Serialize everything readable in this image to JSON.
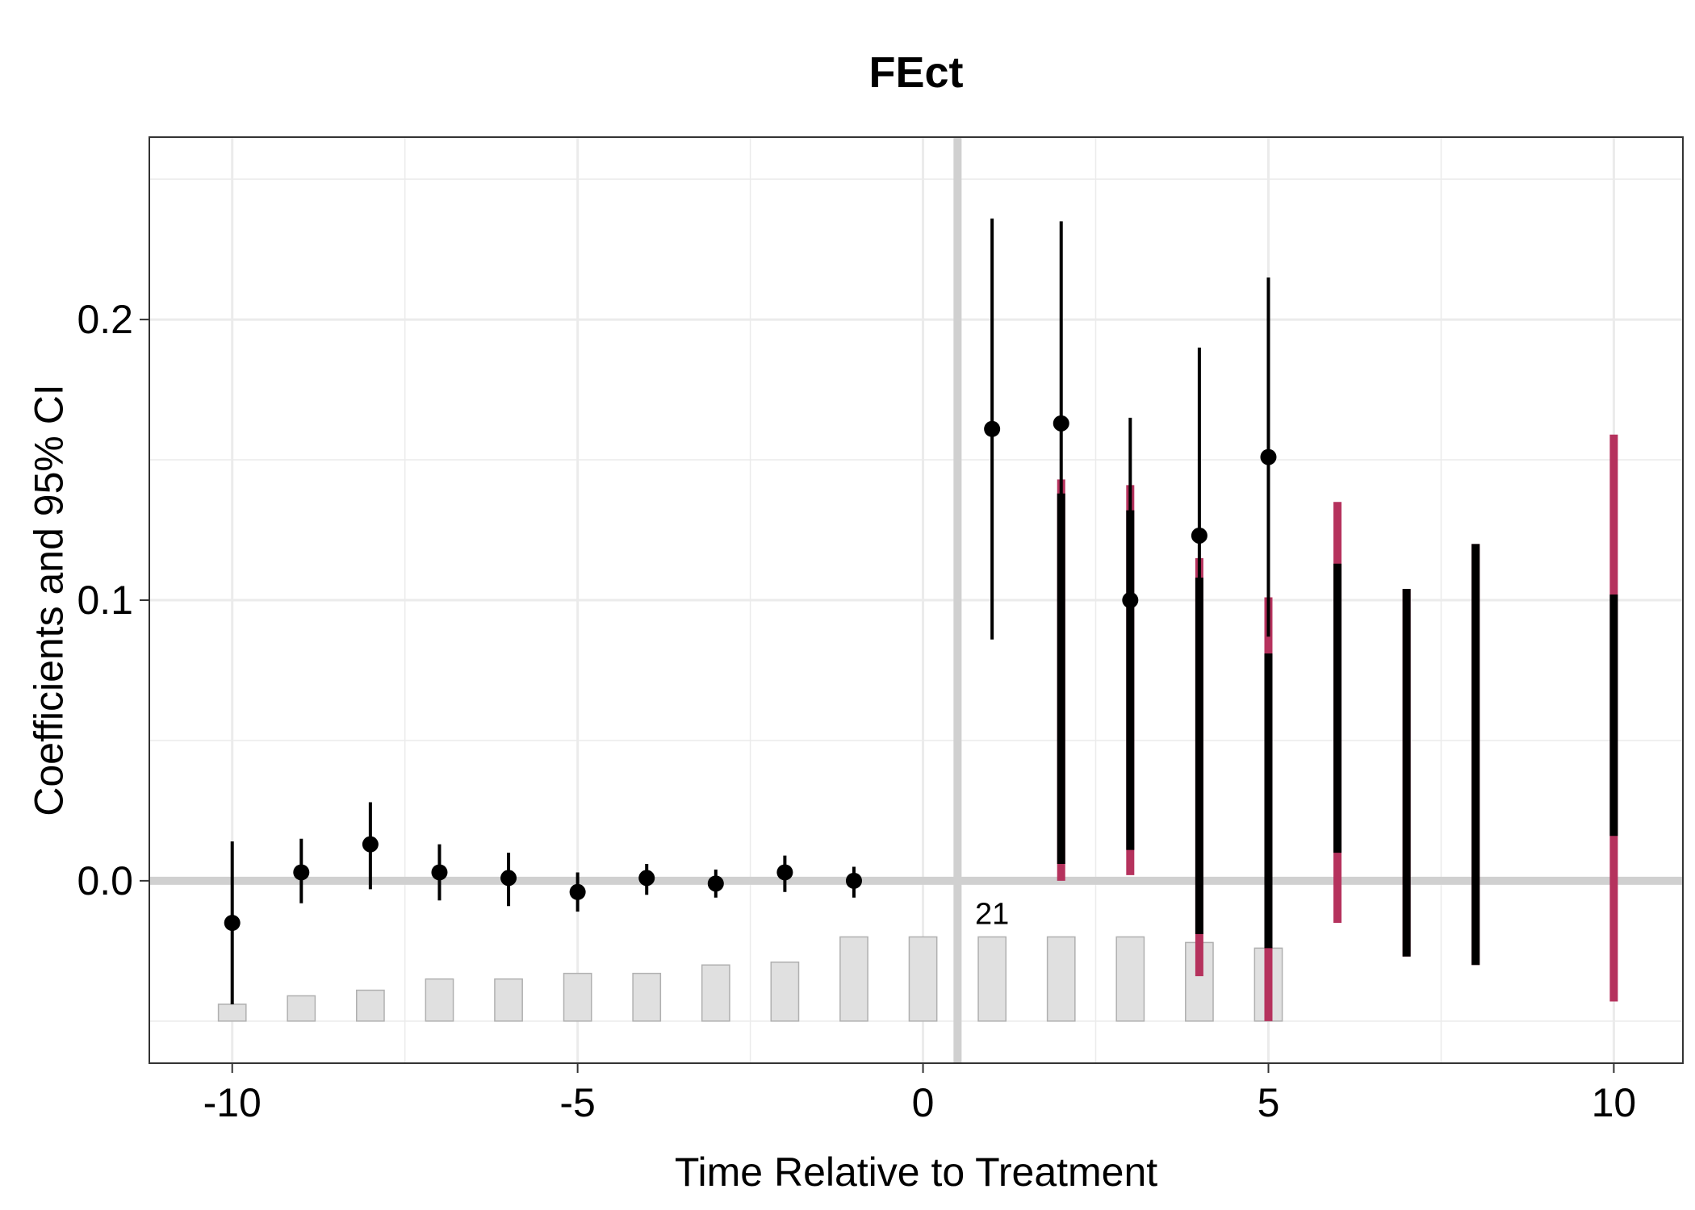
{
  "chart_data": {
    "type": "scatter",
    "title": "FEct",
    "xlabel": "Time Relative to Treatment",
    "ylabel": "Coefficients and 95% CI",
    "xlim": [
      -11.2,
      11.0
    ],
    "ylim": [
      -0.065,
      0.265
    ],
    "x_ticks": [
      -10,
      -5,
      0,
      5,
      10
    ],
    "x_tick_labels": [
      "-10",
      "-5",
      "0",
      "5",
      "10"
    ],
    "y_ticks": [
      0.0,
      0.1,
      0.2
    ],
    "y_tick_labels": [
      "0.0",
      "0.1",
      "0.2"
    ],
    "grid": true,
    "reference_lines": {
      "horizontal": 0.0,
      "vertical": 0.5
    },
    "annotation": {
      "text": "21",
      "x": 1.0,
      "y": -0.012
    },
    "colors": {
      "point": "#000000",
      "highlight": "#b5325d",
      "bar_fill": "#e0e0e0",
      "bar_stroke": "#b0b0b0",
      "ref_line": "#d0d0d0",
      "grid": "#ebebeb"
    },
    "series": [
      {
        "kind": "point_estimates",
        "points": [
          {
            "x": -10,
            "y": -0.015,
            "lo": -0.044,
            "hi": 0.014
          },
          {
            "x": -9,
            "y": 0.003,
            "lo": -0.008,
            "hi": 0.015
          },
          {
            "x": -8,
            "y": 0.013,
            "lo": -0.003,
            "hi": 0.028
          },
          {
            "x": -7,
            "y": 0.003,
            "lo": -0.007,
            "hi": 0.013
          },
          {
            "x": -6,
            "y": 0.001,
            "lo": -0.009,
            "hi": 0.01
          },
          {
            "x": -5,
            "y": -0.004,
            "lo": -0.011,
            "hi": 0.003
          },
          {
            "x": -4,
            "y": 0.001,
            "lo": -0.005,
            "hi": 0.006
          },
          {
            "x": -3,
            "y": -0.001,
            "lo": -0.006,
            "hi": 0.004
          },
          {
            "x": -2,
            "y": 0.003,
            "lo": -0.004,
            "hi": 0.009
          },
          {
            "x": -1,
            "y": 0.0,
            "lo": -0.006,
            "hi": 0.005
          },
          {
            "x": 1,
            "y": 0.161,
            "lo": 0.086,
            "hi": 0.236
          },
          {
            "x": 2,
            "y": 0.163,
            "lo": 0.09,
            "hi": 0.235
          },
          {
            "x": 3,
            "y": 0.1,
            "lo": 0.035,
            "hi": 0.165
          },
          {
            "x": 4,
            "y": 0.123,
            "lo": 0.056,
            "hi": 0.19
          },
          {
            "x": 5,
            "y": 0.151,
            "lo": 0.087,
            "hi": 0.215
          }
        ]
      },
      {
        "kind": "equivalence_intervals",
        "bars": [
          {
            "x": 2,
            "outer": [
              0.0,
              0.143
            ],
            "inner": [
              0.006,
              0.138
            ]
          },
          {
            "x": 3,
            "outer": [
              0.002,
              0.141
            ],
            "inner": [
              0.011,
              0.132
            ]
          },
          {
            "x": 4,
            "outer": [
              -0.034,
              0.115
            ],
            "inner": [
              -0.019,
              0.108
            ]
          },
          {
            "x": 5,
            "outer": [
              -0.05,
              0.101
            ],
            "inner": [
              -0.024,
              0.081
            ]
          },
          {
            "x": 6,
            "outer": [
              -0.015,
              0.135
            ],
            "inner": [
              0.01,
              0.113
            ]
          },
          {
            "x": 7,
            "outer": [
              -0.027,
              0.104
            ],
            "inner": [
              -0.027,
              0.104
            ]
          },
          {
            "x": 8,
            "outer": [
              -0.03,
              0.12
            ],
            "inner": [
              -0.03,
              0.12
            ]
          },
          {
            "x": 10,
            "outer": [
              -0.043,
              0.159
            ],
            "inner": [
              0.016,
              0.102
            ]
          }
        ]
      },
      {
        "kind": "observation_counts",
        "bar_base": -0.05,
        "bars": [
          {
            "x": -10,
            "top": -0.044
          },
          {
            "x": -9,
            "top": -0.041
          },
          {
            "x": -8,
            "top": -0.039
          },
          {
            "x": -7,
            "top": -0.035
          },
          {
            "x": -6,
            "top": -0.035
          },
          {
            "x": -5,
            "top": -0.033
          },
          {
            "x": -4,
            "top": -0.033
          },
          {
            "x": -3,
            "top": -0.03
          },
          {
            "x": -2,
            "top": -0.029
          },
          {
            "x": -1,
            "top": -0.02
          },
          {
            "x": 0,
            "top": -0.02
          },
          {
            "x": 1,
            "top": -0.02
          },
          {
            "x": 2,
            "top": -0.02
          },
          {
            "x": 3,
            "top": -0.02
          },
          {
            "x": 4,
            "top": -0.022
          },
          {
            "x": 5,
            "top": -0.024
          }
        ]
      }
    ]
  }
}
